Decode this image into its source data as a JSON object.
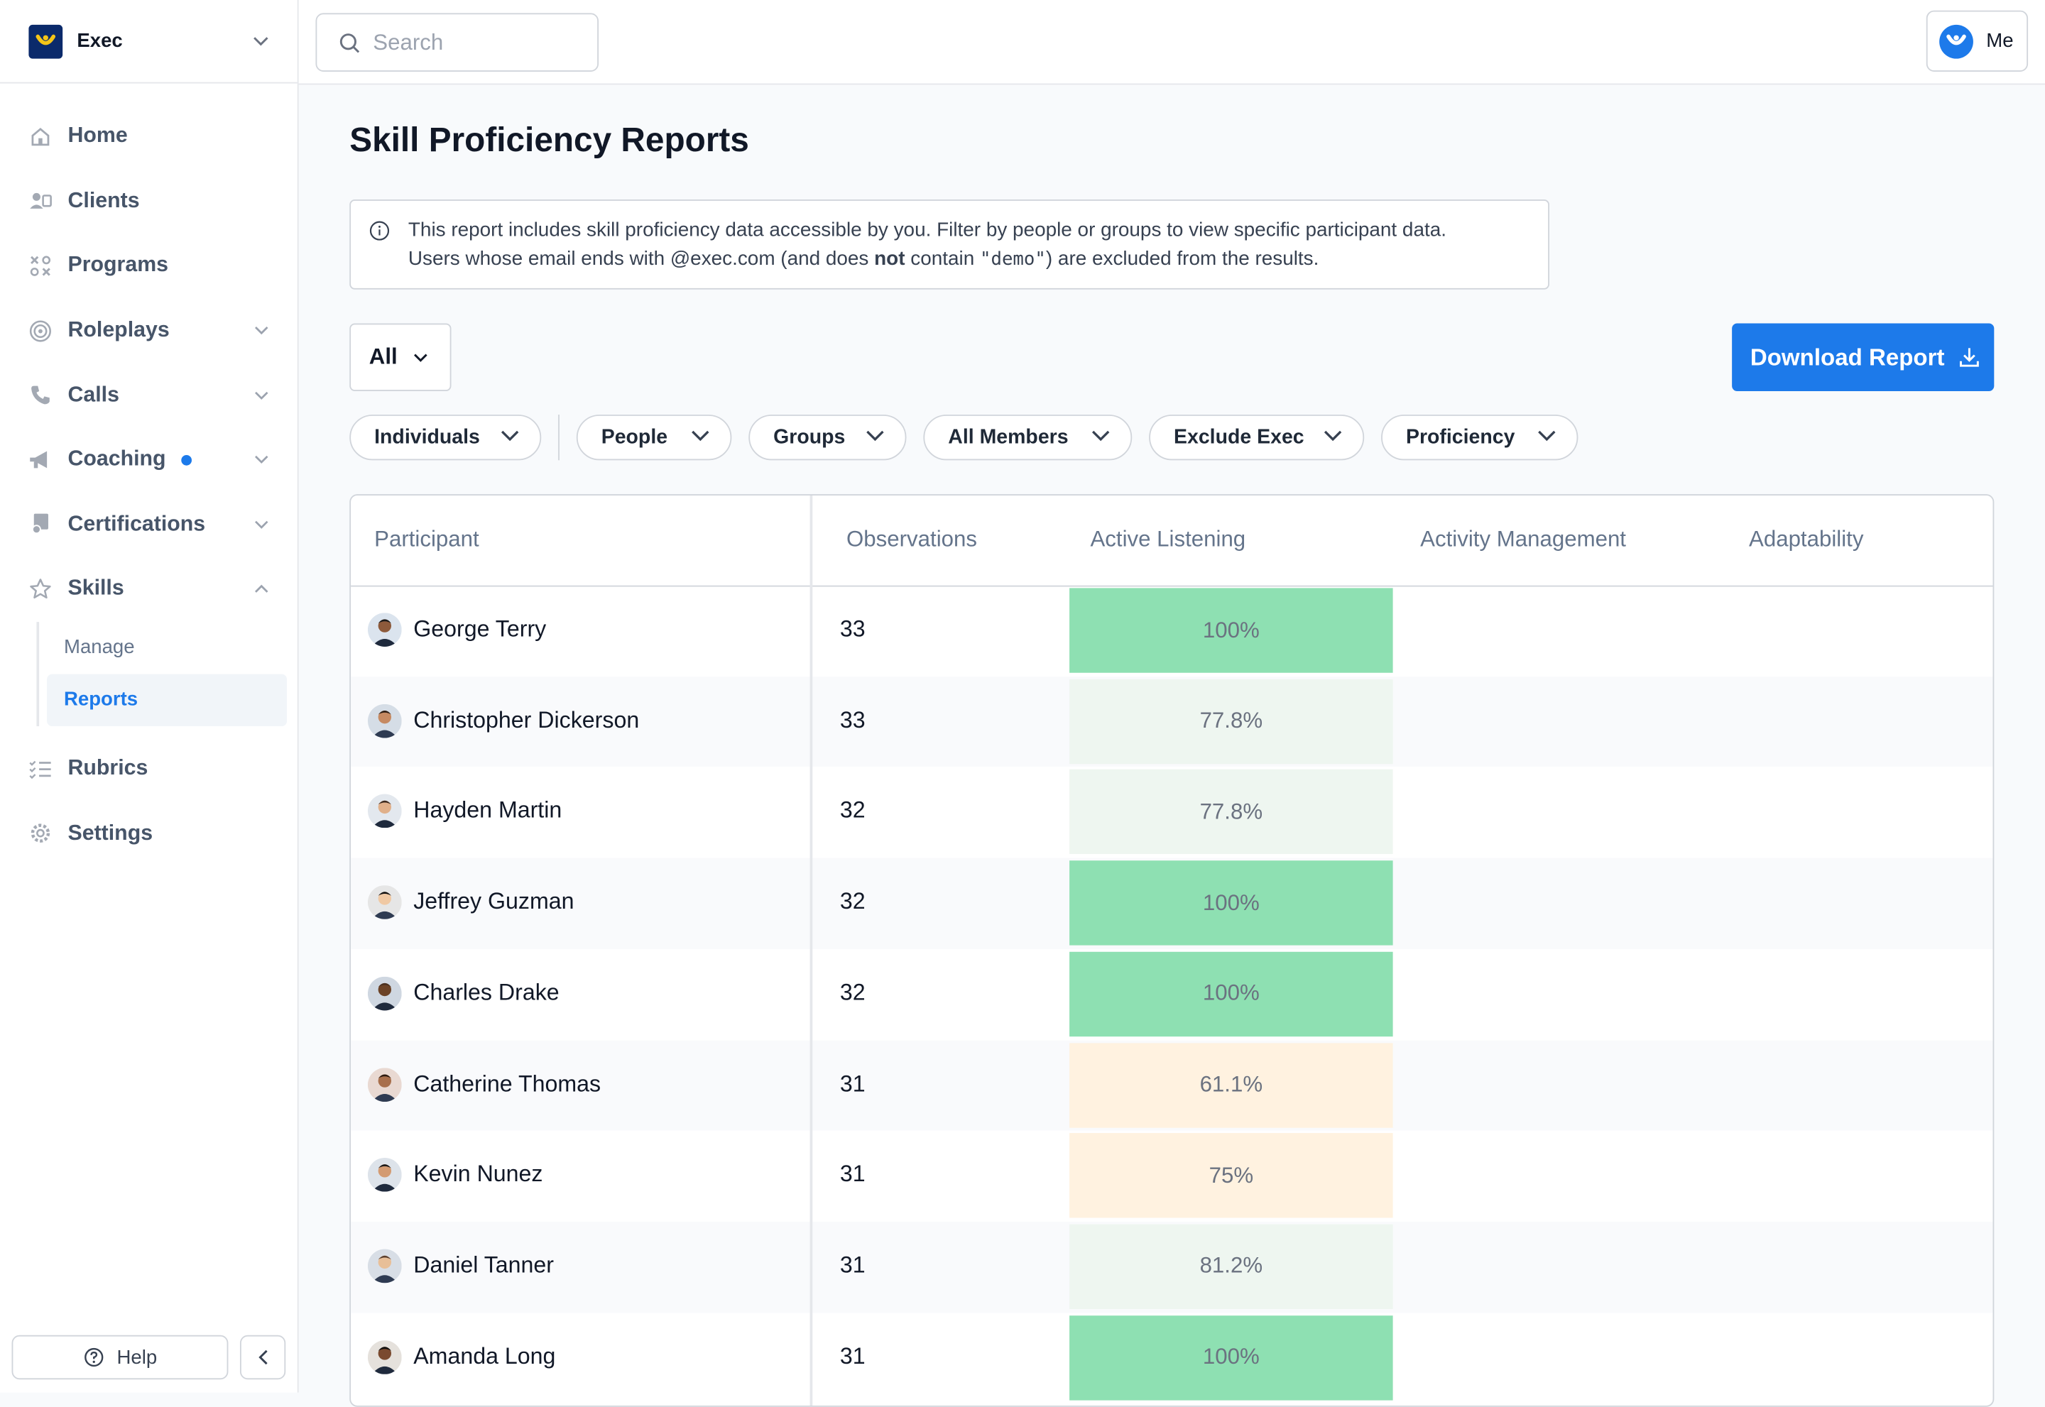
{
  "workspace": {
    "name": "Exec"
  },
  "search": {
    "placeholder": "Search"
  },
  "user": {
    "label": "Me"
  },
  "nav": {
    "items": [
      {
        "label": "Home",
        "icon": "home-icon"
      },
      {
        "label": "Clients",
        "icon": "clients-icon"
      },
      {
        "label": "Programs",
        "icon": "programs-icon"
      },
      {
        "label": "Roleplays",
        "icon": "target-icon",
        "chevron": "down"
      },
      {
        "label": "Calls",
        "icon": "phone-icon",
        "chevron": "down"
      },
      {
        "label": "Coaching",
        "icon": "megaphone-icon",
        "chevron": "down",
        "badge": true
      },
      {
        "label": "Certifications",
        "icon": "certificate-icon",
        "chevron": "down"
      },
      {
        "label": "Skills",
        "icon": "star-icon",
        "chevron": "up"
      }
    ],
    "skills_sub": [
      {
        "label": "Manage",
        "active": false
      },
      {
        "label": "Reports",
        "active": true
      }
    ],
    "after": [
      {
        "label": "Rubrics",
        "icon": "rubrics-icon"
      },
      {
        "label": "Settings",
        "icon": "gear-icon"
      }
    ],
    "help_label": "Help"
  },
  "page": {
    "title": "Skill Proficiency Reports",
    "banner": {
      "line1": "This report includes skill proficiency data accessible by you. Filter by people or groups to view specific participant data.",
      "line2_a": "Users whose email ends with @exec.com (and does ",
      "line2_bold": "not",
      "line2_b": " contain ",
      "line2_code": "\"demo\"",
      "line2_c": ") are excluded from the results."
    },
    "scope_select": "All",
    "download_label": "Download Report",
    "filters": [
      "Individuals",
      "People",
      "Groups",
      "All Members",
      "Exclude Exec",
      "Proficiency"
    ]
  },
  "table": {
    "columns": [
      "Participant",
      "Observations",
      "Active Listening",
      "Activity Management",
      "Adaptability"
    ],
    "rows": [
      {
        "name": "George Terry",
        "observations": "33",
        "active_listening": "100%"
      },
      {
        "name": "Christopher Dickerson",
        "observations": "33",
        "active_listening": "77.8%"
      },
      {
        "name": "Hayden Martin",
        "observations": "32",
        "active_listening": "77.8%"
      },
      {
        "name": "Jeffrey Guzman",
        "observations": "32",
        "active_listening": "100%"
      },
      {
        "name": "Charles Drake",
        "observations": "32",
        "active_listening": "100%"
      },
      {
        "name": "Catherine Thomas",
        "observations": "31",
        "active_listening": "61.1%"
      },
      {
        "name": "Kevin Nunez",
        "observations": "31",
        "active_listening": "75%"
      },
      {
        "name": "Daniel Tanner",
        "observations": "31",
        "active_listening": "81.2%"
      },
      {
        "name": "Amanda Long",
        "observations": "31",
        "active_listening": "100%"
      }
    ]
  },
  "colors": {
    "accent": "#1d7aea",
    "proficient": "#8ee0b2",
    "developing": "#eef6f0",
    "needs_work": "#fff2e0"
  }
}
